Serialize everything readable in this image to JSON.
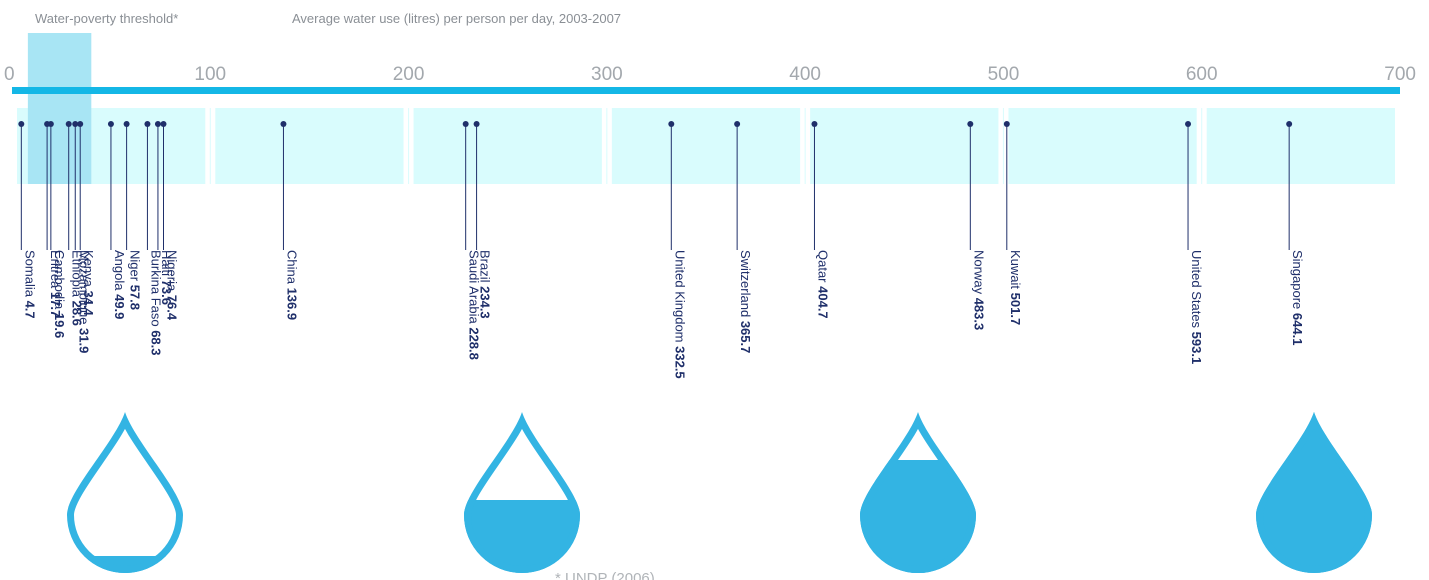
{
  "header": {
    "threshold_label": "Water-poverty threshold*",
    "subtitle": "Average water use (litres) per person per day, 2003-2007"
  },
  "footnote": "* UNDP (2006)",
  "chart_data": {
    "type": "scatter",
    "subtitle": "Average water use (litres) per person per day, 2003-2007",
    "xlim": [
      0,
      700
    ],
    "x_ticks": [
      0,
      100,
      200,
      300,
      400,
      500,
      600,
      700
    ],
    "threshold_band": {
      "label": "Water-poverty threshold*",
      "from": 8,
      "to": 40
    },
    "colors": {
      "axis": "#14b7e6",
      "band": "#d9fcfd",
      "threshold": "#a8e5f4",
      "marker": "#1f2f6a",
      "drop": "#33b4e3"
    },
    "points": [
      {
        "name": "Somalia",
        "value": "4.7",
        "x": 4.7
      },
      {
        "name": "Cambodia",
        "value": "19.6",
        "x": 19.6
      },
      {
        "name": "Eritrea",
        "value": "17.7",
        "x": 17.7
      },
      {
        "name": "Ethiopia",
        "value": "28.6",
        "x": 28.6
      },
      {
        "name": "Mozambique",
        "value": "31.9",
        "x": 31.9
      },
      {
        "name": "Kenya",
        "value": "34.4",
        "x": 34.4
      },
      {
        "name": "Angola",
        "value": "49.9",
        "x": 49.9
      },
      {
        "name": "Niger",
        "value": "57.8",
        "x": 57.8
      },
      {
        "name": "Burkina Faso",
        "value": "68.3",
        "x": 68.3
      },
      {
        "name": "Haiti",
        "value": "73.6",
        "x": 73.6
      },
      {
        "name": "Nigeria",
        "value": "76.4",
        "x": 76.4
      },
      {
        "name": "China",
        "value": "136.9",
        "x": 136.9
      },
      {
        "name": "Saudi Arabia",
        "value": "228.8",
        "x": 228.8
      },
      {
        "name": "Brazil",
        "value": "234.3",
        "x": 234.3
      },
      {
        "name": "United Kingdom",
        "value": "332.5",
        "x": 332.5
      },
      {
        "name": "Switzerland",
        "value": "365.7",
        "x": 365.7
      },
      {
        "name": "Qatar",
        "value": "404.7",
        "x": 404.7
      },
      {
        "name": "Norway",
        "value": "483.3",
        "x": 483.3
      },
      {
        "name": "Kuwait",
        "value": "501.7",
        "x": 501.7
      },
      {
        "name": "United States",
        "value": "593.1",
        "x": 593.1
      },
      {
        "name": "Singapore",
        "value": "644.1",
        "x": 644.1
      }
    ],
    "drops": [
      {
        "name": "drop-empty",
        "fill": 0.1
      },
      {
        "name": "drop-half",
        "fill": 0.45
      },
      {
        "name": "drop-most",
        "fill": 0.7
      },
      {
        "name": "drop-full",
        "fill": 1.0
      }
    ]
  }
}
